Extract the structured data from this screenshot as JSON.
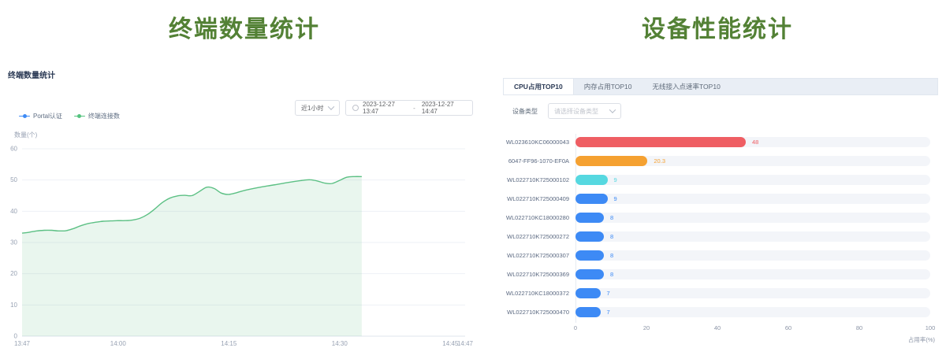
{
  "headings": {
    "left": "终端数量统计",
    "right": "设备性能统计"
  },
  "left_panel": {
    "title": "终端数量统计",
    "time_range_select": {
      "value": "近1小时"
    },
    "date_range": {
      "start": "2023-12-27 13:47",
      "separator": "-",
      "end": "2023-12-27 14:47"
    },
    "legend": [
      {
        "key": "portal-auth",
        "label": "Portal认证",
        "color": "#3d8af5"
      },
      {
        "key": "terminal-connections",
        "label": "终端连接数",
        "color": "#54c37e"
      }
    ]
  },
  "right_panel": {
    "tabs": [
      {
        "key": "cpu-top10",
        "label": "CPU占用TOP10",
        "active": true
      },
      {
        "key": "memory-top10",
        "label": "内存占用TOP10",
        "active": false
      },
      {
        "key": "wireless-ap-rate-top10",
        "label": "无线接入点速率TOP10",
        "active": false
      }
    ],
    "filter": {
      "label": "设备类型",
      "placeholder": "请选择设备类型"
    }
  },
  "chart_data": [
    {
      "type": "area",
      "title": "终端数量统计",
      "ylabel": "数量(个)",
      "ylim": [
        0,
        60
      ],
      "y_ticks": [
        0,
        10,
        20,
        30,
        40,
        50,
        60
      ],
      "x_ticks": [
        "13:47",
        "14:00",
        "14:15",
        "14:30",
        "14:45",
        "14:47"
      ],
      "x_range": [
        "13:47",
        "14:47"
      ],
      "grid": true,
      "legend_position": "top-left",
      "series": [
        {
          "name": "Portal认证",
          "color": "#3d8af5",
          "points": []
        },
        {
          "name": "终端连接数",
          "color": "#5cc084",
          "fill": "rgba(102,192,133,0.14)",
          "points": [
            [
              "13:47",
              33
            ],
            [
              "13:48",
              33.3
            ],
            [
              "13:49",
              33.7
            ],
            [
              "13:50",
              33.9
            ],
            [
              "13:51",
              33.9
            ],
            [
              "13:52",
              33.7
            ],
            [
              "13:53",
              33.8
            ],
            [
              "13:54",
              34.5
            ],
            [
              "13:55",
              35.4
            ],
            [
              "13:56",
              36.1
            ],
            [
              "13:57",
              36.5
            ],
            [
              "13:58",
              36.8
            ],
            [
              "13:59",
              36.9
            ],
            [
              "14:00",
              37
            ],
            [
              "14:01",
              37
            ],
            [
              "14:02",
              37.2
            ],
            [
              "14:03",
              37.8
            ],
            [
              "14:04",
              39
            ],
            [
              "14:05",
              40.8
            ],
            [
              "14:06",
              42.8
            ],
            [
              "14:07",
              44.2
            ],
            [
              "14:08",
              44.9
            ],
            [
              "14:09",
              45.1
            ],
            [
              "14:10",
              45
            ],
            [
              "14:11",
              46.3
            ],
            [
              "14:12",
              47.7
            ],
            [
              "14:13",
              47.3
            ],
            [
              "14:14",
              45.8
            ],
            [
              "14:15",
              45.4
            ],
            [
              "14:16",
              45.9
            ],
            [
              "14:17",
              46.6
            ],
            [
              "14:19",
              47.6
            ],
            [
              "14:21",
              48.4
            ],
            [
              "14:23",
              49.2
            ],
            [
              "14:25",
              49.9
            ],
            [
              "14:26",
              50.1
            ],
            [
              "14:27",
              49.7
            ],
            [
              "14:28",
              49
            ],
            [
              "14:29",
              48.9
            ],
            [
              "14:30",
              49.9
            ],
            [
              "14:31",
              50.9
            ],
            [
              "14:32",
              51.1
            ],
            [
              "14:33",
              51.1
            ]
          ]
        }
      ]
    },
    {
      "type": "bar",
      "orientation": "horizontal",
      "title": "CPU占用TOP10",
      "xlabel": "占用率(%)",
      "xlim": [
        0,
        100
      ],
      "x_ticks": [
        0,
        20,
        40,
        60,
        80,
        100
      ],
      "categories": [
        "WL023610KC06000043",
        "6047-FF96-1070-EF0A",
        "WL022710K725000102",
        "WL022710K725000409",
        "WL022710KC18000280",
        "WL022710K725000272",
        "WL022710K725000307",
        "WL022710K725000369",
        "WL022710KC18000372",
        "WL022710K725000470"
      ],
      "values": [
        48,
        20.3,
        9,
        9,
        8,
        8,
        8,
        8,
        7,
        7
      ],
      "bar_colors": [
        "#ef5e63",
        "#f5a131",
        "#56d8e0",
        "#3d8af5",
        "#3d8af5",
        "#3d8af5",
        "#3d8af5",
        "#3d8af5",
        "#3d8af5",
        "#3d8af5"
      ],
      "track_color": "#f3f5f9"
    }
  ]
}
